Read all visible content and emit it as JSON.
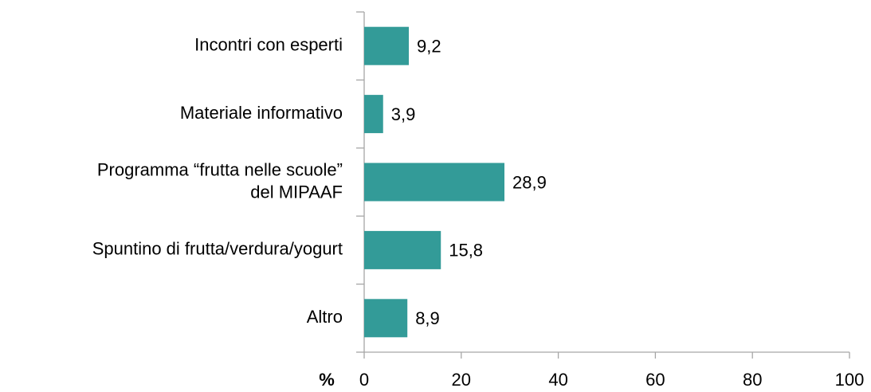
{
  "chart_data": {
    "type": "bar",
    "orientation": "horizontal",
    "categories": [
      "Incontri con esperti",
      "Materiale informativo",
      "Programma “frutta nelle scuole”\ndel MIPAAF",
      "Spuntino di frutta/verdura/yogurt",
      "Altro"
    ],
    "values": [
      9.2,
      3.9,
      28.9,
      15.8,
      8.9
    ],
    "value_labels": [
      "9,2",
      "3,9",
      "28,9",
      "15,8",
      "8,9"
    ],
    "color": "#339b98",
    "x_label": "%",
    "xlim": [
      0,
      100
    ],
    "xticks": [
      0,
      20,
      40,
      60,
      80,
      100
    ],
    "grid": false
  }
}
